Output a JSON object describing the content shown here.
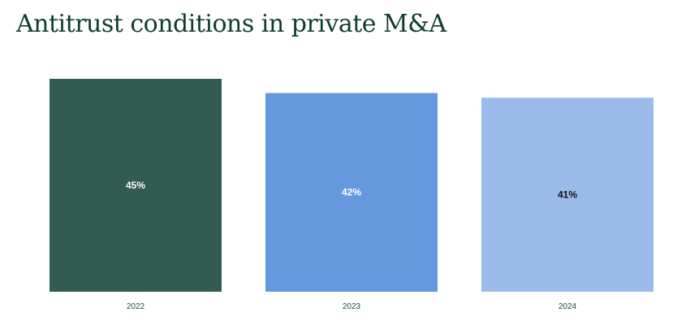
{
  "chart_data": {
    "type": "bar",
    "title": "Antitrust conditions in private M&A",
    "xlabel": "",
    "ylabel": "",
    "categories": [
      "2022",
      "2023",
      "2024"
    ],
    "values": [
      45,
      42,
      41
    ],
    "value_labels": [
      "45%",
      "42%",
      "41%"
    ],
    "unit": "%",
    "ylim": [
      0,
      45
    ],
    "grid": false,
    "legend": "none",
    "bar_colors": [
      "#325b52",
      "#6698e0",
      "#9bbbeb"
    ],
    "label_colors": [
      "#ffffff",
      "#ffffff",
      "#111111"
    ]
  }
}
